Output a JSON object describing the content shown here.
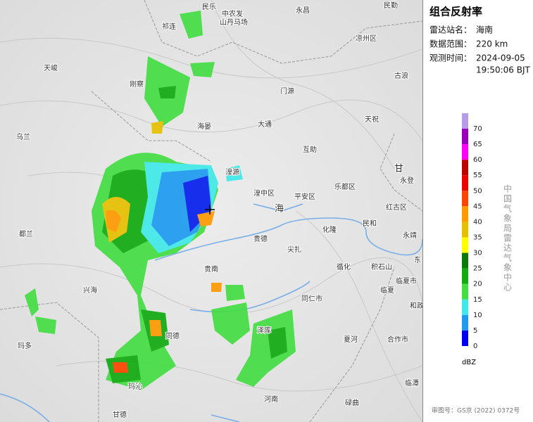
{
  "panel": {
    "title": "组合反射率",
    "station_label": "雷达站名：",
    "station": "海南",
    "range_label": "数据范围：",
    "range": "220 km",
    "time_label": "观测时间：",
    "date": "2024-09-05",
    "time": "19:50:06 BJT",
    "unit": "dBZ",
    "credit": "中国气象局雷达气象中心",
    "approval": "审图号：GS京 (2022) 0372号"
  },
  "legend": {
    "levels": [
      {
        "value": 70,
        "color": "#b89ce8"
      },
      {
        "value": 65,
        "color": "#9900bb"
      },
      {
        "value": 60,
        "color": "#ff00ff"
      },
      {
        "value": 55,
        "color": "#c00000"
      },
      {
        "value": 50,
        "color": "#ee0000"
      },
      {
        "value": 45,
        "color": "#ff4400"
      },
      {
        "value": 40,
        "color": "#ff9900"
      },
      {
        "value": 35,
        "color": "#e6c000"
      },
      {
        "value": 30,
        "color": "#ffff00"
      },
      {
        "value": 25,
        "color": "#0a7a0a"
      },
      {
        "value": 20,
        "color": "#11aa11"
      },
      {
        "value": 15,
        "color": "#44dd44"
      },
      {
        "value": 10,
        "color": "#40e8e8"
      },
      {
        "value": 5,
        "color": "#1e9bf0"
      },
      {
        "value": 0,
        "color": "#0000ee"
      }
    ]
  },
  "places": [
    "民乐",
    "中农发",
    "山丹马场",
    "永昌",
    "民勤",
    "祁连",
    "凉州区",
    "古浪",
    "天峻",
    "刚察",
    "门源",
    "天祝",
    "海晏",
    "大通",
    "乌兰",
    "互助",
    "湟源",
    "甘",
    "湟中区",
    "永登",
    "平安区",
    "乐都区",
    "海",
    "红古区",
    "民和",
    "化隆",
    "贵德",
    "都兰",
    "永靖",
    "尖扎",
    "东",
    "循化",
    "积石山",
    "贵南",
    "临夏市",
    "临夏",
    "兴海",
    "同仁市",
    "和政",
    "泽库",
    "同德",
    "合作市",
    "夏河",
    "玛多",
    "临潭",
    "玛沁",
    "河南",
    "碌曲",
    "甘德"
  ]
}
